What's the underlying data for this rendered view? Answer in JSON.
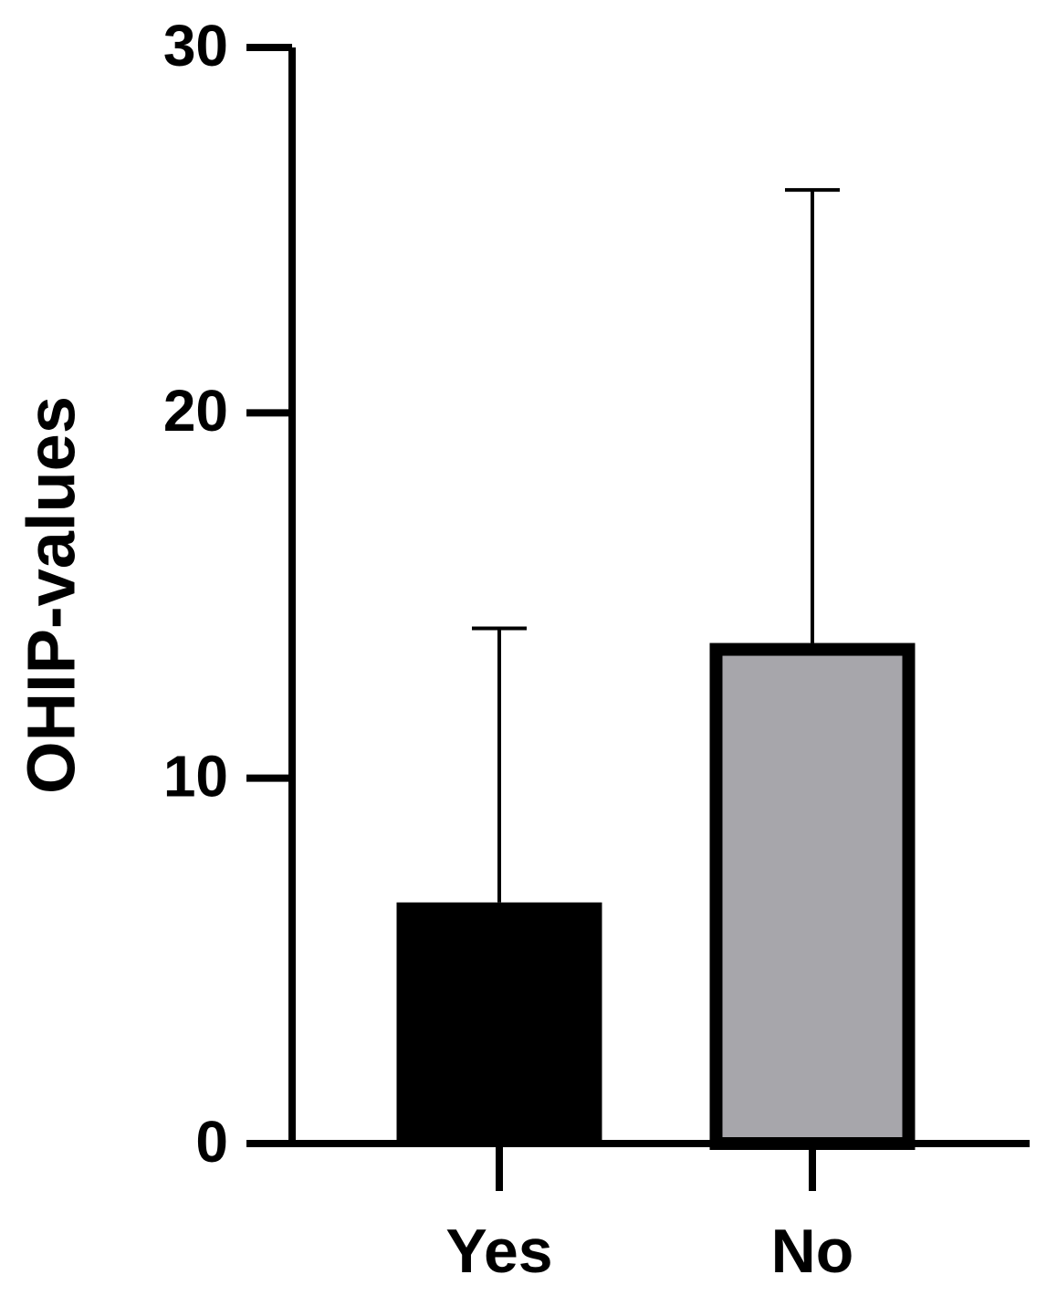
{
  "chart_data": {
    "type": "bar",
    "ylabel": "OHIP-values",
    "categories": [
      "Yes",
      "No"
    ],
    "values": [
      6.6,
      13.7
    ],
    "errors": [
      7.5,
      12.4
    ],
    "colors": [
      "#000000",
      "#a7a6ab"
    ],
    "ylim": [
      0,
      30
    ],
    "yticks": [
      0,
      10,
      20,
      30
    ],
    "grid": false
  }
}
